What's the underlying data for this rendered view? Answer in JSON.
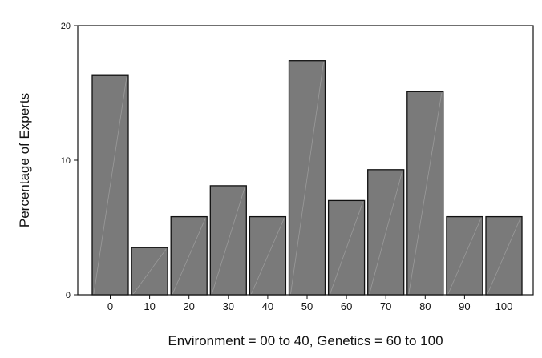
{
  "chart_data": {
    "type": "bar",
    "categories": [
      "0",
      "10",
      "20",
      "30",
      "40",
      "50",
      "60",
      "70",
      "80",
      "90",
      "100"
    ],
    "values": [
      16.3,
      3.5,
      5.8,
      8.1,
      5.8,
      17.4,
      7.0,
      9.3,
      15.1,
      5.8,
      5.8
    ],
    "xlabel": "Environment = 00 to 40, Genetics = 60 to 100",
    "ylabel": "Percentage of Experts",
    "ylim": [
      0,
      20
    ],
    "yticks": [
      "0",
      "10",
      "20"
    ],
    "grid": false,
    "colors": {
      "bar_fill": "#7a7a7a",
      "bar_stroke": "#111111",
      "axis": "#111111"
    }
  }
}
